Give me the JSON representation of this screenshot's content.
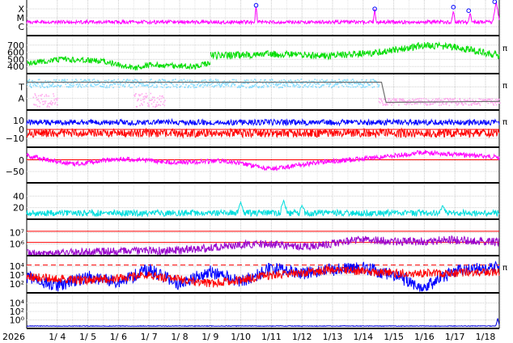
{
  "chart_data": {
    "type": "line",
    "x_axis": {
      "year_label": "2026",
      "ticks": [
        "1/ 4",
        "1/ 5",
        "1/ 6",
        "1/ 7",
        "1/ 8",
        "1/ 9",
        "1/10",
        "1/11",
        "1/12",
        "1/13",
        "1/14",
        "1/15",
        "1/16",
        "1/17",
        "1/18"
      ],
      "range_days": [
        3.0,
        18.45
      ]
    },
    "panels": [
      {
        "id": "flare",
        "y_labels": [
          "X",
          "M",
          "C"
        ],
        "right_label": "",
        "series": [
          {
            "color": "#ff00ff",
            "mode": "line",
            "base": 0.62,
            "noise": 0.05,
            "seed": 11,
            "segments": [
              [
                3.0,
                18.45
              ]
            ],
            "spikes": [
              [
                10.5,
                0.15,
                0.05
              ],
              [
                14.38,
                0.25,
                0.05
              ],
              [
                16.95,
                0.3,
                0.06
              ],
              [
                17.5,
                0.35,
                0.06
              ],
              [
                18.35,
                0.06,
                0.12
              ]
            ]
          }
        ],
        "markers": [
          [
            10.5,
            0.15
          ],
          [
            14.38,
            0.25
          ],
          [
            16.95,
            0.2
          ],
          [
            17.45,
            0.3
          ],
          [
            18.3,
            0.05
          ]
        ],
        "marker_color": "#0000ff",
        "hlines": []
      },
      {
        "id": "wind_speed",
        "y_labels": [
          "700",
          "600",
          "500",
          "400"
        ],
        "right_label": "π",
        "series": [
          {
            "color": "#00dd00",
            "mode": "line",
            "base": 0.7,
            "noise": 0.08,
            "seed": 21,
            "segments": [
              [
                3.0,
                9.0
              ]
            ],
            "trend": [
              [
                3.0,
                0.7
              ],
              [
                4.2,
                0.6
              ],
              [
                5.5,
                0.65
              ],
              [
                6.5,
                0.85
              ],
              [
                7.0,
                0.75
              ],
              [
                8.5,
                0.8
              ],
              [
                9.0,
                0.7
              ]
            ]
          },
          {
            "color": "#00dd00",
            "mode": "line",
            "base": 0.45,
            "noise": 0.1,
            "seed": 22,
            "segments": [
              [
                9.0,
                18.45
              ]
            ],
            "trend": [
              [
                9.0,
                0.5
              ],
              [
                11.0,
                0.45
              ],
              [
                13.0,
                0.5
              ],
              [
                14.5,
                0.4
              ],
              [
                16.0,
                0.2
              ],
              [
                17.0,
                0.25
              ],
              [
                18.45,
                0.5
              ]
            ]
          }
        ],
        "hlines": []
      },
      {
        "id": "imf_direction",
        "y_labels": [
          "T",
          "A"
        ],
        "right_label": "π",
        "series": [
          {
            "color": "#88ddff",
            "mode": "dots",
            "base": 0.22,
            "noise": 0.12,
            "seed": 31,
            "segments": [
              [
                3.0,
                14.5
              ]
            ]
          },
          {
            "color": "#ffaaee",
            "mode": "dots",
            "base": 0.75,
            "noise": 0.1,
            "seed": 32,
            "segments": [
              [
                14.5,
                18.45
              ]
            ]
          },
          {
            "color": "#ffaaee",
            "mode": "dots",
            "base": 0.7,
            "noise": 0.2,
            "seed": 33,
            "segments": [
              [
                3.2,
                4.0
              ],
              [
                6.5,
                7.5
              ]
            ]
          }
        ],
        "step": [
          [
            3.0,
            0.2
          ],
          [
            14.6,
            0.2
          ],
          [
            14.75,
            0.78
          ],
          [
            18.45,
            0.75
          ]
        ],
        "step_color": "#707070",
        "hlines": []
      },
      {
        "id": "imf_components",
        "y_labels": [
          "10",
          "0",
          "−10"
        ],
        "right_label": "π",
        "series": [
          {
            "color": "#0000ff",
            "mode": "line",
            "base": 0.3,
            "noise": 0.08,
            "seed": 41,
            "segments": [
              [
                3.0,
                18.45
              ]
            ]
          },
          {
            "color": "#ff0000",
            "mode": "line",
            "base": 0.6,
            "noise": 0.12,
            "seed": 42,
            "segments": [
              [
                3.0,
                18.45
              ]
            ]
          }
        ],
        "hlines": [
          {
            "value": 0.5,
            "color": "#ff0000"
          }
        ]
      },
      {
        "id": "bz",
        "y_labels": [
          "0",
          "−50"
        ],
        "right_label": "",
        "series": [
          {
            "color": "#ff00ff",
            "mode": "line",
            "base": 0.25,
            "noise": 0.07,
            "seed": 51,
            "segments": [
              [
                3.0,
                18.45
              ]
            ],
            "trend": [
              [
                3.0,
                0.2
              ],
              [
                4.5,
                0.45
              ],
              [
                6.0,
                0.3
              ],
              [
                8.0,
                0.4
              ],
              [
                9.5,
                0.35
              ],
              [
                11.0,
                0.6
              ],
              [
                12.5,
                0.4
              ],
              [
                14.5,
                0.25
              ],
              [
                16.0,
                0.1
              ],
              [
                18.45,
                0.25
              ]
            ]
          }
        ],
        "hlines": [
          {
            "value": 0.32,
            "color": "#ff0000"
          }
        ]
      },
      {
        "id": "density",
        "y_labels": [
          "40",
          "20"
        ],
        "right_label": "",
        "series": [
          {
            "color": "#00dddd",
            "mode": "line",
            "base": 0.82,
            "noise": 0.09,
            "seed": 61,
            "segments": [
              [
                3.0,
                18.45
              ]
            ],
            "spikes": [
              [
                10.0,
                0.5,
                0.1
              ],
              [
                11.4,
                0.45,
                0.12
              ],
              [
                12.0,
                0.6,
                0.1
              ],
              [
                16.6,
                0.6,
                0.1
              ]
            ]
          }
        ],
        "hlines": []
      },
      {
        "id": "proton_flux",
        "y_labels": [
          "10⁷",
          "10⁶"
        ],
        "right_label": "",
        "series": [
          {
            "color": "#9900cc",
            "mode": "line",
            "base": 0.85,
            "noise": 0.12,
            "seed": 71,
            "segments": [
              [
                3.0,
                18.45
              ]
            ],
            "trend": [
              [
                3.0,
                0.95
              ],
              [
                5.0,
                0.9
              ],
              [
                8.0,
                0.85
              ],
              [
                10.5,
                0.65
              ],
              [
                12.0,
                0.75
              ],
              [
                14.0,
                0.55
              ],
              [
                15.5,
                0.6
              ],
              [
                17.0,
                0.55
              ],
              [
                18.45,
                0.6
              ]
            ]
          }
        ],
        "hlines": [
          {
            "value": 0.3,
            "color": "#ff0000"
          },
          {
            "value": 0.62,
            "color": "#ff0000"
          }
        ]
      },
      {
        "id": "electron_flux",
        "y_labels": [
          "10⁴",
          "10³",
          "10²"
        ],
        "right_label": "π",
        "series": [
          {
            "color": "#0000ff",
            "mode": "line",
            "base": 0.6,
            "noise": 0.18,
            "seed": 81,
            "segments": [
              [
                3.0,
                18.45
              ]
            ],
            "trend": [
              [
                3.0,
                0.55
              ],
              [
                4.0,
                0.8
              ],
              [
                5.0,
                0.55
              ],
              [
                6.0,
                0.7
              ],
              [
                7.0,
                0.35
              ],
              [
                8.0,
                0.75
              ],
              [
                9.0,
                0.4
              ],
              [
                10.0,
                0.7
              ],
              [
                11.0,
                0.3
              ],
              [
                12.0,
                0.45
              ],
              [
                13.0,
                0.35
              ],
              [
                14.0,
                0.3
              ],
              [
                15.0,
                0.5
              ],
              [
                16.0,
                0.85
              ],
              [
                17.0,
                0.4
              ],
              [
                18.45,
                0.25
              ]
            ]
          },
          {
            "color": "#ff0000",
            "mode": "line",
            "base": 0.6,
            "noise": 0.12,
            "seed": 82,
            "segments": [
              [
                3.0,
                18.45
              ]
            ],
            "trend": [
              [
                3.0,
                0.55
              ],
              [
                5.0,
                0.65
              ],
              [
                7.0,
                0.5
              ],
              [
                9.0,
                0.75
              ],
              [
                11.0,
                0.5
              ],
              [
                13.0,
                0.35
              ],
              [
                15.0,
                0.45
              ],
              [
                17.0,
                0.45
              ],
              [
                18.45,
                0.4
              ]
            ]
          }
        ],
        "hlines": [
          {
            "value": 0.22,
            "color": "#ff0000",
            "dashed": true
          }
        ]
      },
      {
        "id": "neutron",
        "y_labels": [
          "10⁴",
          "10²",
          "10⁰"
        ],
        "right_label": "",
        "series": [
          {
            "color": "#0000dd",
            "mode": "line",
            "base": 0.93,
            "noise": 0.01,
            "seed": 91,
            "segments": [
              [
                3.0,
                18.45
              ]
            ],
            "spikes": [
              [
                18.4,
                0.7,
                0.06
              ]
            ]
          }
        ],
        "hlines": []
      }
    ]
  }
}
